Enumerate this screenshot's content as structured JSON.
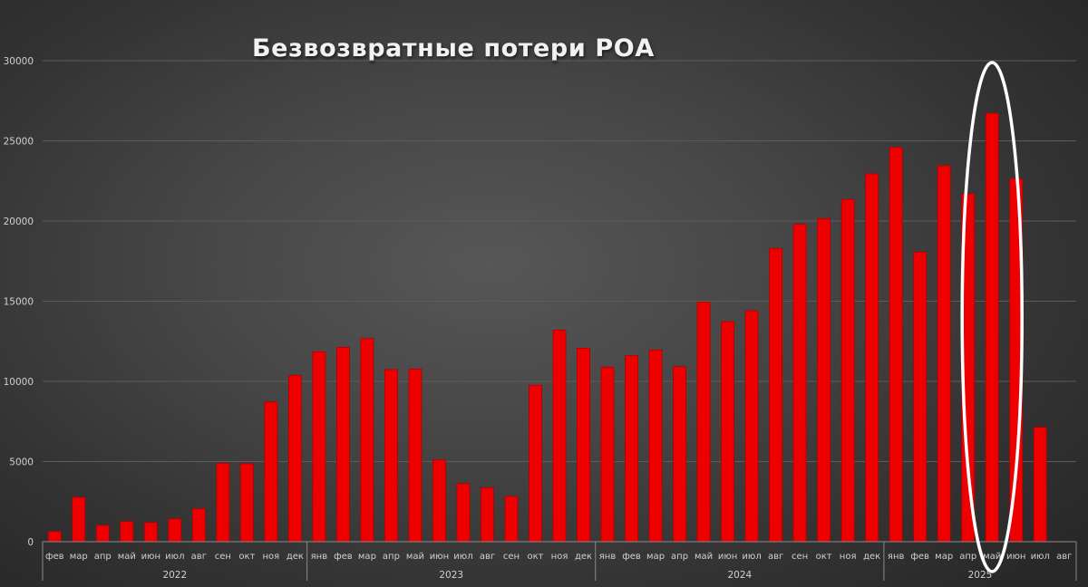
{
  "title": "Безвозвратные потери РОА",
  "colors": {
    "bar": "#ee0000",
    "bar_border": "#b00000",
    "grid": "#5c5c5c",
    "axis": "#8a8a8a",
    "text": "#d0d0d0",
    "highlight": "#ffffff"
  },
  "chart_data": {
    "type": "bar",
    "title": "Безвозвратные потери РОА",
    "xlabel": "",
    "ylabel": "",
    "ylim": [
      0,
      30000
    ],
    "yticks": [
      0,
      5000,
      10000,
      15000,
      20000,
      25000,
      30000
    ],
    "grid": true,
    "legend": null,
    "groups": [
      {
        "year": "2022",
        "months": [
          "фев",
          "мар",
          "апр",
          "май",
          "июн",
          "июл",
          "авг",
          "сен",
          "окт",
          "ноя",
          "дек"
        ]
      },
      {
        "year": "2023",
        "months": [
          "янв",
          "фев",
          "мар",
          "апр",
          "май",
          "июн",
          "июл",
          "авг",
          "сен",
          "окт",
          "ноя",
          "дек"
        ]
      },
      {
        "year": "2024",
        "months": [
          "янв",
          "фев",
          "мар",
          "апр",
          "май",
          "июн",
          "июл",
          "авг",
          "сен",
          "окт",
          "ноя",
          "дек"
        ]
      },
      {
        "year": "2025",
        "months": [
          "янв",
          "фев",
          "мар",
          "апр",
          "май",
          "июн",
          "июл",
          "авг"
        ]
      }
    ],
    "categories": [
      "2022 фев",
      "2022 мар",
      "2022 апр",
      "2022 май",
      "2022 июн",
      "2022 июл",
      "2022 авг",
      "2022 сен",
      "2022 окт",
      "2022 ноя",
      "2022 дек",
      "2023 янв",
      "2023 фев",
      "2023 мар",
      "2023 апр",
      "2023 май",
      "2023 июн",
      "2023 июл",
      "2023 авг",
      "2023 сен",
      "2023 окт",
      "2023 ноя",
      "2023 дек",
      "2024 янв",
      "2024 фев",
      "2024 мар",
      "2024 апр",
      "2024 май",
      "2024 июн",
      "2024 июл",
      "2024 авг",
      "2024 сен",
      "2024 окт",
      "2024 ноя",
      "2024 дек",
      "2025 янв",
      "2025 фев",
      "2025 мар",
      "2025 апр",
      "2025 май",
      "2025 июн",
      "2025 июл",
      "2025 авг"
    ],
    "values": [
      640,
      2770,
      1020,
      1260,
      1190,
      1430,
      2050,
      4900,
      4860,
      8720,
      10380,
      11850,
      12130,
      12670,
      10740,
      10770,
      5100,
      3630,
      3370,
      2830,
      9760,
      13200,
      12070,
      10890,
      11600,
      11960,
      10920,
      14950,
      13730,
      14410,
      18290,
      19810,
      20150,
      21340,
      22940,
      24600,
      18060,
      23450,
      21700,
      26720,
      22640,
      7140,
      null
    ],
    "annotations": [
      {
        "type": "ellipse",
        "target": "2025 май",
        "color": "#ffffff",
        "description": "white oval highlighting May 2025 peak"
      }
    ]
  }
}
